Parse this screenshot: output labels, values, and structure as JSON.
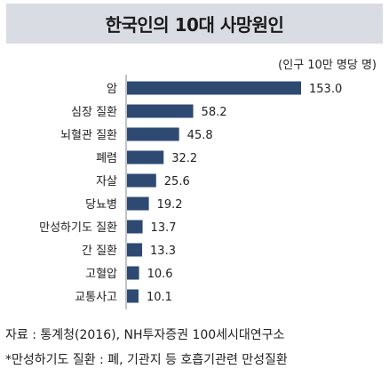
{
  "chart_data": {
    "type": "bar",
    "orientation": "horizontal",
    "title": "한국인의 10대 사망원인",
    "unit_label": "(인구 10만 명당 명)",
    "categories": [
      "암",
      "심장 질환",
      "뇌혈관 질환",
      "폐렴",
      "자살",
      "당뇨병",
      "만성하기도 질환",
      "간 질환",
      "고혈압",
      "교통사고"
    ],
    "values": [
      153.0,
      58.2,
      45.8,
      32.2,
      25.6,
      19.2,
      13.7,
      13.3,
      10.6,
      10.1
    ],
    "value_labels": [
      "153.0",
      "58.2",
      "45.8",
      "32.2",
      "25.6",
      "19.2",
      "13.7",
      "13.3",
      "10.6",
      "10.1"
    ],
    "xlim": [
      0,
      153.0
    ],
    "bar_color": "#2e4a73",
    "grid": false,
    "legend": "none"
  },
  "footer": {
    "source": "자료 : 통계청(2016), NH투자증권 100세시대연구소",
    "note": "*만성하기도 질환 : 폐, 기관지 등 호흡기관련 만성질환"
  }
}
